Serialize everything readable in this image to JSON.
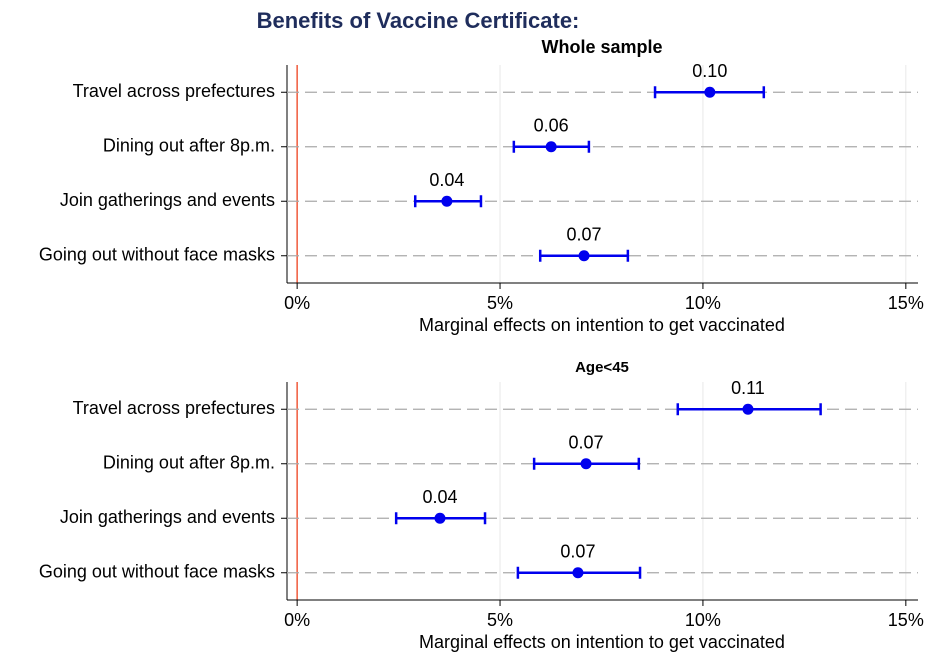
{
  "title": "Benefits of Vaccine Certificate:",
  "chart_data": [
    {
      "type": "errorbar",
      "title": "Whole sample",
      "xlabel": "Marginal effects on intention to get vaccinated",
      "categories": [
        "Travel across prefectures",
        "Dining out after 8p.m.",
        "Join gatherings and events",
        "Going out without face masks"
      ],
      "values": [
        0.1017,
        0.0626,
        0.0369,
        0.0707
      ],
      "value_labels": [
        "0.10",
        "0.06",
        "0.04",
        "0.07"
      ],
      "ci_low": [
        0.0882,
        0.0534,
        0.0291,
        0.0599
      ],
      "ci_high": [
        0.115,
        0.0719,
        0.0453,
        0.0815
      ],
      "color": "#0000ee",
      "refline": 0,
      "refline_color": "#f05a3c",
      "xlim": [
        -0.0025,
        0.153
      ],
      "xticks": [
        {
          "value": 0,
          "label": "0%"
        },
        {
          "value": 0.05,
          "label": "5%"
        },
        {
          "value": 0.1,
          "label": "10%"
        },
        {
          "value": 0.15,
          "label": "15%"
        }
      ],
      "grid": true
    },
    {
      "type": "errorbar",
      "title": "Age<45",
      "xlabel": "Marginal effects on intention to get vaccinated",
      "categories": [
        "Travel across prefectures",
        "Dining out after 8p.m.",
        "Join gatherings and events",
        "Going out without face masks"
      ],
      "values": [
        0.1111,
        0.0712,
        0.0352,
        0.0692
      ],
      "value_labels": [
        "0.11",
        "0.07",
        "0.04",
        "0.07"
      ],
      "ci_low": [
        0.0938,
        0.0584,
        0.0244,
        0.0544
      ],
      "ci_high": [
        0.129,
        0.0842,
        0.0463,
        0.0845
      ],
      "color": "#0000ee",
      "refline": 0,
      "refline_color": "#f05a3c",
      "xlim": [
        -0.0025,
        0.153
      ],
      "xticks": [
        {
          "value": 0,
          "label": "0%"
        },
        {
          "value": 0.05,
          "label": "5%"
        },
        {
          "value": 0.1,
          "label": "10%"
        },
        {
          "value": 0.15,
          "label": "15%"
        }
      ],
      "grid": true
    }
  ]
}
